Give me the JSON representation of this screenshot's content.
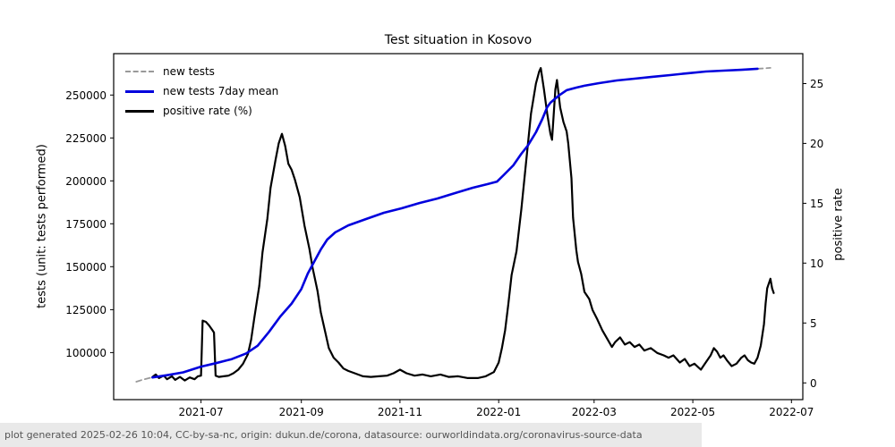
{
  "title": "Test situation in Kosovo",
  "footer": {
    "text": "plot generated 2025-02-26 10:04, CC-by-sa-nc, origin: dukun.de/corona, datasource: ourworldindata.org/coronavirus-source-data"
  },
  "chart_data": {
    "type": "line",
    "title": "Test situation in Kosovo",
    "legend_position": "upper-left",
    "grid": false,
    "x_axis": {
      "range": [
        "2021-05-08",
        "2022-07-08"
      ],
      "ticks": [
        {
          "label": "2021-07",
          "date": "2021-07-01"
        },
        {
          "label": "2021-09",
          "date": "2021-09-01"
        },
        {
          "label": "2021-11",
          "date": "2021-11-01"
        },
        {
          "label": "2022-01",
          "date": "2022-01-01"
        },
        {
          "label": "2022-03",
          "date": "2022-03-01"
        },
        {
          "label": "2022-05",
          "date": "2022-05-01"
        },
        {
          "label": "2022-07",
          "date": "2022-07-01"
        }
      ]
    },
    "y_left": {
      "label": "tests (unit: tests performed)",
      "range": [
        72600,
        274100
      ],
      "ticks": [
        100000,
        125000,
        150000,
        175000,
        200000,
        225000,
        250000
      ]
    },
    "y_right": {
      "label": "positive rate",
      "range": [
        -1.4,
        27.5
      ],
      "ticks": [
        0,
        5,
        10,
        15,
        20,
        25
      ]
    },
    "series": [
      {
        "id": "new-tests",
        "name": "new tests",
        "axis": "left",
        "color": "#999999",
        "dash": "6 4",
        "width": 1.8,
        "segments": [
          [
            [
              "2021-05-22",
              83000
            ],
            [
              "2021-05-26",
              84200
            ],
            [
              "2021-06-01",
              85600
            ]
          ],
          [
            [
              "2022-06-10",
              265300
            ],
            [
              "2022-06-14",
              265500
            ],
            [
              "2022-06-18",
              265800
            ]
          ]
        ]
      },
      {
        "id": "new-tests-7day-mean",
        "name": "new tests 7day mean",
        "axis": "left",
        "color": "#0000dd",
        "dash": null,
        "width": 2.6,
        "segments": [
          [
            [
              "2021-06-01",
              85500
            ],
            [
              "2021-06-10",
              86800
            ],
            [
              "2021-06-20",
              88500
            ],
            [
              "2021-07-01",
              91800
            ],
            [
              "2021-07-10",
              93800
            ],
            [
              "2021-07-20",
              96200
            ],
            [
              "2021-07-29",
              99500
            ],
            [
              "2021-08-05",
              104000
            ],
            [
              "2021-08-12",
              112000
            ],
            [
              "2021-08-19",
              121000
            ],
            [
              "2021-08-26",
              128500
            ],
            [
              "2021-09-01",
              137000
            ],
            [
              "2021-09-05",
              146000
            ],
            [
              "2021-09-09",
              153000
            ],
            [
              "2021-09-13",
              160000
            ],
            [
              "2021-09-17",
              165800
            ],
            [
              "2021-09-22",
              170000
            ],
            [
              "2021-09-30",
              174100
            ],
            [
              "2021-10-11",
              177800
            ],
            [
              "2021-10-22",
              181400
            ],
            [
              "2021-11-02",
              184000
            ],
            [
              "2021-11-13",
              187100
            ],
            [
              "2021-11-24",
              189700
            ],
            [
              "2021-12-05",
              192900
            ],
            [
              "2021-12-16",
              196000
            ],
            [
              "2021-12-25",
              198100
            ],
            [
              "2021-12-31",
              199600
            ],
            [
              "2022-01-04",
              203300
            ],
            [
              "2022-01-10",
              209000
            ],
            [
              "2022-01-15",
              215800
            ],
            [
              "2022-01-19",
              220500
            ],
            [
              "2022-01-24",
              228300
            ],
            [
              "2022-01-28",
              236100
            ],
            [
              "2022-01-31",
              242900
            ],
            [
              "2022-02-02",
              245500
            ],
            [
              "2022-02-07",
              249600
            ],
            [
              "2022-02-12",
              252800
            ],
            [
              "2022-02-18",
              254300
            ],
            [
              "2022-02-23",
              255400
            ],
            [
              "2022-03-04",
              256900
            ],
            [
              "2022-03-15",
              258500
            ],
            [
              "2022-03-26",
              259500
            ],
            [
              "2022-04-06",
              260600
            ],
            [
              "2022-04-17",
              261600
            ],
            [
              "2022-04-28",
              262700
            ],
            [
              "2022-05-09",
              263700
            ],
            [
              "2022-05-20",
              264200
            ],
            [
              "2022-05-31",
              264700
            ],
            [
              "2022-06-10",
              265300
            ]
          ]
        ]
      },
      {
        "id": "positive-rate",
        "name": "positive rate (%)",
        "axis": "right",
        "color": "#000000",
        "dash": null,
        "width": 2.2,
        "segments": [
          [
            [
              "2021-06-01",
              0.5
            ],
            [
              "2021-06-03",
              0.7
            ],
            [
              "2021-06-05",
              0.4
            ],
            [
              "2021-06-08",
              0.6
            ],
            [
              "2021-06-10",
              0.3
            ],
            [
              "2021-06-13",
              0.55
            ],
            [
              "2021-06-15",
              0.25
            ],
            [
              "2021-06-18",
              0.5
            ],
            [
              "2021-06-21",
              0.2
            ],
            [
              "2021-06-24",
              0.45
            ],
            [
              "2021-06-27",
              0.3
            ],
            [
              "2021-06-29",
              0.55
            ],
            [
              "2021-07-01",
              0.6
            ],
            [
              "2021-07-02",
              5.2
            ],
            [
              "2021-07-04",
              5.1
            ],
            [
              "2021-07-06",
              4.8
            ],
            [
              "2021-07-08",
              4.4
            ],
            [
              "2021-07-09",
              4.2
            ],
            [
              "2021-07-10",
              0.6
            ],
            [
              "2021-07-12",
              0.5
            ],
            [
              "2021-07-15",
              0.55
            ],
            [
              "2021-07-18",
              0.6
            ],
            [
              "2021-07-21",
              0.8
            ],
            [
              "2021-07-24",
              1.1
            ],
            [
              "2021-07-27",
              1.6
            ],
            [
              "2021-07-30",
              2.4
            ],
            [
              "2021-08-01",
              3.6
            ],
            [
              "2021-08-03",
              5.5
            ],
            [
              "2021-08-06",
              8.1
            ],
            [
              "2021-08-08",
              10.9
            ],
            [
              "2021-08-11",
              13.7
            ],
            [
              "2021-08-13",
              16.3
            ],
            [
              "2021-08-16",
              18.6
            ],
            [
              "2021-08-18",
              20.0
            ],
            [
              "2021-08-20",
              20.8
            ],
            [
              "2021-08-22",
              19.8
            ],
            [
              "2021-08-24",
              18.3
            ],
            [
              "2021-08-26",
              17.8
            ],
            [
              "2021-08-28",
              17.0
            ],
            [
              "2021-08-31",
              15.5
            ],
            [
              "2021-09-03",
              13.1
            ],
            [
              "2021-09-06",
              11.2
            ],
            [
              "2021-09-08",
              9.6
            ],
            [
              "2021-09-11",
              7.7
            ],
            [
              "2021-09-13",
              5.9
            ],
            [
              "2021-09-16",
              4.1
            ],
            [
              "2021-09-18",
              2.9
            ],
            [
              "2021-09-21",
              2.1
            ],
            [
              "2021-09-24",
              1.7
            ],
            [
              "2021-09-27",
              1.2
            ],
            [
              "2021-09-30",
              1.0
            ],
            [
              "2021-10-04",
              0.8
            ],
            [
              "2021-10-09",
              0.55
            ],
            [
              "2021-10-14",
              0.5
            ],
            [
              "2021-10-19",
              0.55
            ],
            [
              "2021-10-24",
              0.6
            ],
            [
              "2021-10-28",
              0.8
            ],
            [
              "2021-11-01",
              1.1
            ],
            [
              "2021-11-05",
              0.8
            ],
            [
              "2021-11-10",
              0.6
            ],
            [
              "2021-11-15",
              0.7
            ],
            [
              "2021-11-20",
              0.55
            ],
            [
              "2021-11-26",
              0.7
            ],
            [
              "2021-12-01",
              0.5
            ],
            [
              "2021-12-07",
              0.55
            ],
            [
              "2021-12-13",
              0.4
            ],
            [
              "2021-12-19",
              0.4
            ],
            [
              "2021-12-24",
              0.55
            ],
            [
              "2021-12-29",
              0.9
            ],
            [
              "2022-01-01",
              1.7
            ],
            [
              "2022-01-03",
              2.9
            ],
            [
              "2022-01-05",
              4.4
            ],
            [
              "2022-01-07",
              6.6
            ],
            [
              "2022-01-09",
              9.0
            ],
            [
              "2022-01-12",
              11.0
            ],
            [
              "2022-01-15",
              14.5
            ],
            [
              "2022-01-18",
              18.5
            ],
            [
              "2022-01-21",
              22.5
            ],
            [
              "2022-01-24",
              25.0
            ],
            [
              "2022-01-26",
              26.0
            ],
            [
              "2022-01-27",
              26.3
            ],
            [
              "2022-01-29",
              24.5
            ],
            [
              "2022-01-31",
              22.5
            ],
            [
              "2022-02-02",
              20.8
            ],
            [
              "2022-02-03",
              20.3
            ],
            [
              "2022-02-05",
              24.5
            ],
            [
              "2022-02-06",
              25.3
            ],
            [
              "2022-02-08",
              23.0
            ],
            [
              "2022-02-10",
              21.8
            ],
            [
              "2022-02-12",
              21.0
            ],
            [
              "2022-02-13",
              20.0
            ],
            [
              "2022-02-15",
              17.1
            ],
            [
              "2022-02-16",
              13.8
            ],
            [
              "2022-02-18",
              11.1
            ],
            [
              "2022-02-19",
              10.1
            ],
            [
              "2022-02-21",
              9.1
            ],
            [
              "2022-02-23",
              7.6
            ],
            [
              "2022-02-26",
              7.0
            ],
            [
              "2022-02-28",
              6.1
            ],
            [
              "2022-03-03",
              5.3
            ],
            [
              "2022-03-06",
              4.4
            ],
            [
              "2022-03-09",
              3.7
            ],
            [
              "2022-03-12",
              3.0
            ],
            [
              "2022-03-14",
              3.4
            ],
            [
              "2022-03-17",
              3.8
            ],
            [
              "2022-03-20",
              3.2
            ],
            [
              "2022-03-23",
              3.4
            ],
            [
              "2022-03-26",
              3.0
            ],
            [
              "2022-03-29",
              3.2
            ],
            [
              "2022-04-01",
              2.7
            ],
            [
              "2022-04-05",
              2.9
            ],
            [
              "2022-04-09",
              2.5
            ],
            [
              "2022-04-13",
              2.3
            ],
            [
              "2022-04-16",
              2.1
            ],
            [
              "2022-04-19",
              2.3
            ],
            [
              "2022-04-23",
              1.7
            ],
            [
              "2022-04-26",
              2.0
            ],
            [
              "2022-04-29",
              1.4
            ],
            [
              "2022-05-02",
              1.6
            ],
            [
              "2022-05-06",
              1.1
            ],
            [
              "2022-05-09",
              1.7
            ],
            [
              "2022-05-12",
              2.3
            ],
            [
              "2022-05-14",
              2.9
            ],
            [
              "2022-05-16",
              2.6
            ],
            [
              "2022-05-18",
              2.1
            ],
            [
              "2022-05-20",
              2.3
            ],
            [
              "2022-05-22",
              1.9
            ],
            [
              "2022-05-25",
              1.4
            ],
            [
              "2022-05-28",
              1.6
            ],
            [
              "2022-05-31",
              2.1
            ],
            [
              "2022-06-02",
              2.3
            ],
            [
              "2022-06-04",
              1.9
            ],
            [
              "2022-06-06",
              1.7
            ],
            [
              "2022-06-08",
              1.6
            ],
            [
              "2022-06-10",
              2.1
            ],
            [
              "2022-06-12",
              3.1
            ],
            [
              "2022-06-14",
              4.9
            ],
            [
              "2022-06-15",
              6.6
            ],
            [
              "2022-06-16",
              7.9
            ],
            [
              "2022-06-18",
              8.7
            ],
            [
              "2022-06-19",
              7.9
            ],
            [
              "2022-06-20",
              7.5
            ]
          ]
        ]
      }
    ]
  }
}
